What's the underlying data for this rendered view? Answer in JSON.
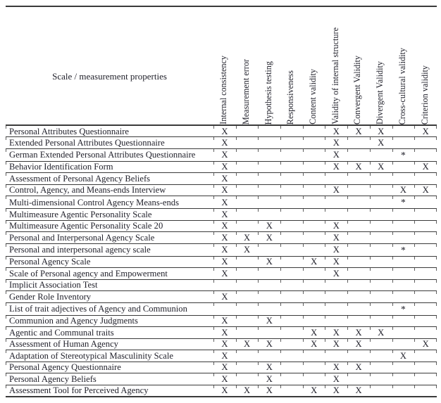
{
  "colors": {
    "bg": "#ffffff",
    "text": "#22222c",
    "line": "#3a3a3a"
  },
  "table": {
    "corner_header": "Scale / measurement properties",
    "columns": [
      "Internal consistency",
      "Measurement error",
      "Hypothesis testing",
      "Responsiveness",
      "Content validity",
      "Validity of internal structure",
      "Convergent Validity",
      "Divergent Validity",
      "Cross-cultural validity",
      "Criterion validity"
    ],
    "rows": [
      {
        "name": "Personal Attributes Questionnaire",
        "marks": [
          "X",
          "",
          "",
          "",
          "",
          "X",
          "X",
          "X",
          "",
          "X"
        ]
      },
      {
        "name": "Extended Personal Attributes Questionnaire",
        "marks": [
          "X",
          "",
          "",
          "",
          "",
          "X",
          "",
          "X",
          "",
          ""
        ]
      },
      {
        "name": "German Extended Personal Attributes Questionnaire",
        "marks": [
          "X",
          "",
          "",
          "",
          "",
          "X",
          "",
          "",
          "*",
          ""
        ]
      },
      {
        "name": "Behavior Identification Form",
        "marks": [
          "X",
          "",
          "",
          "",
          "",
          "X",
          "X",
          "X",
          "",
          "X"
        ]
      },
      {
        "name": "Assessment of Personal Agency Beliefs",
        "marks": [
          "X",
          "",
          "",
          "",
          "",
          "",
          "",
          "",
          "",
          ""
        ]
      },
      {
        "name": "Control, Agency, and Means-ends Interview",
        "marks": [
          "X",
          "",
          "",
          "",
          "",
          "X",
          "",
          "",
          "X",
          "X"
        ]
      },
      {
        "name": "Multi-dimensional Control Agency Means-ends",
        "marks": [
          "X",
          "",
          "",
          "",
          "",
          "",
          "",
          "",
          "*",
          ""
        ]
      },
      {
        "name": "Multimeasure Agentic Personality Scale",
        "marks": [
          "X",
          "",
          "",
          "",
          "",
          "",
          "",
          "",
          "",
          ""
        ]
      },
      {
        "name": "Multimeasure Agentic Personality Scale 20",
        "marks": [
          "X",
          "",
          "X",
          "",
          "",
          "X",
          "",
          "",
          "",
          ""
        ]
      },
      {
        "name": "Personal and Interpersonal Agency Scale",
        "marks": [
          "X",
          "X",
          "X",
          "",
          "",
          "X",
          "",
          "",
          "",
          ""
        ]
      },
      {
        "name": "Personal and interpersonal agency scale",
        "marks": [
          "X",
          "X",
          "",
          "",
          "",
          "X",
          "",
          "",
          "*",
          ""
        ]
      },
      {
        "name": "Personal Agency Scale",
        "marks": [
          "X",
          "",
          "X",
          "",
          "X",
          "X",
          "",
          "",
          "",
          ""
        ]
      },
      {
        "name": "Scale of Personal agency and Empowerment",
        "marks": [
          "X",
          "",
          "",
          "",
          "",
          "X",
          "",
          "",
          "",
          ""
        ]
      },
      {
        "name": "Implicit Association Test",
        "marks": [
          "",
          "",
          "",
          "",
          "",
          "",
          "",
          "",
          "",
          ""
        ]
      },
      {
        "name": "Gender Role Inventory",
        "marks": [
          "X",
          "",
          "",
          "",
          "",
          "",
          "",
          "",
          "",
          ""
        ]
      },
      {
        "name": "List of trait adjectives of Agency and Communion",
        "marks": [
          "",
          "",
          "",
          "",
          "",
          "",
          "",
          "",
          "*",
          ""
        ]
      },
      {
        "name": "Communion and Agency Judgments",
        "marks": [
          "X",
          "",
          "X",
          "",
          "",
          "",
          "",
          "",
          "",
          ""
        ]
      },
      {
        "name": "Agentic and Communal traits",
        "marks": [
          "X",
          "",
          "",
          "",
          "X",
          "X",
          "X",
          "X",
          "",
          ""
        ]
      },
      {
        "name": "Assessment of Human Agency",
        "marks": [
          "X",
          "X",
          "X",
          "",
          "X",
          "X",
          "X",
          "",
          "",
          "X"
        ]
      },
      {
        "name": "Adaptation of Stereotypical Masculinity Scale",
        "marks": [
          "X",
          "",
          "",
          "",
          "",
          "",
          "",
          "",
          "X",
          ""
        ]
      },
      {
        "name": "Personal Agency Questionnaire",
        "marks": [
          "X",
          "",
          "X",
          "",
          "",
          "X",
          "X",
          "",
          "",
          ""
        ]
      },
      {
        "name": "Personal Agency Beliefs",
        "marks": [
          "X",
          "",
          "X",
          "",
          "",
          "X",
          "",
          "",
          "",
          ""
        ]
      },
      {
        "name": "Assessment Tool for Perceived Agency",
        "marks": [
          "X",
          "X",
          "X",
          "",
          "X",
          "X",
          "X",
          "",
          "",
          ""
        ]
      }
    ]
  }
}
